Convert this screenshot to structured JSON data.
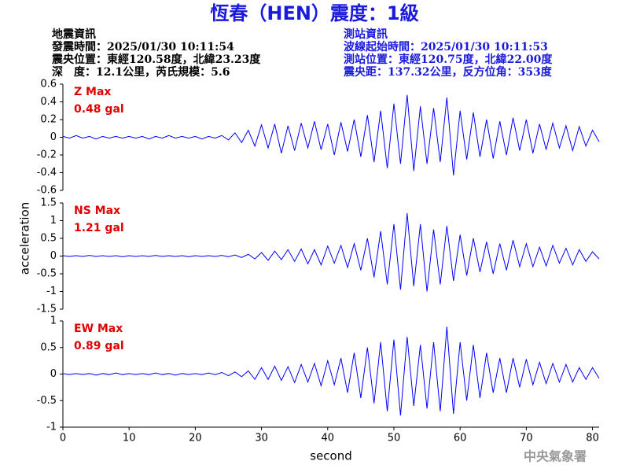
{
  "header": {
    "title": "恆春（HEN）震度：1級",
    "event": [
      "地震資訊",
      "發震時間：2025/01/30 10:11:54",
      "震央位置：東經120.58度，北緯23.23度",
      "深　度：12.1公里，芮氏規模：5.6"
    ],
    "station": [
      "測站資訊",
      "波線起始時間：2025/01/30 10:11:53",
      "測站位置：東經120.75度，北緯22.00度",
      "震央距：137.32公里，反方位角：353度"
    ]
  },
  "ylabel": "acceleration",
  "footer": {
    "agency": "中央氣象署"
  },
  "chart_data": [
    {
      "type": "line",
      "color": "#0000ff",
      "annotations": [
        "Z Max",
        "0.48 gal"
      ],
      "xlim": [
        0,
        81
      ],
      "ylim": [
        -0.6,
        0.6
      ],
      "yticks": [
        -0.6,
        -0.4,
        -0.2,
        0,
        0.2,
        0.4,
        0.6
      ],
      "x": [
        0,
        1,
        2,
        3,
        4,
        5,
        6,
        7,
        8,
        9,
        10,
        11,
        12,
        13,
        14,
        15,
        16,
        17,
        18,
        19,
        20,
        21,
        22,
        23,
        24,
        25,
        26,
        27,
        28,
        29,
        30,
        31,
        32,
        33,
        34,
        35,
        36,
        37,
        38,
        39,
        40,
        41,
        42,
        43,
        44,
        45,
        46,
        47,
        48,
        49,
        50,
        51,
        52,
        53,
        54,
        55,
        56,
        57,
        58,
        59,
        60,
        61,
        62,
        63,
        64,
        65,
        66,
        67,
        68,
        69,
        70,
        71,
        72,
        73,
        74,
        75,
        76,
        77,
        78,
        79,
        80,
        81
      ],
      "values": [
        0.01,
        -0.01,
        0.02,
        -0.01,
        0.01,
        -0.02,
        0.01,
        -0.01,
        0.01,
        -0.01,
        0.01,
        -0.01,
        0.01,
        -0.02,
        0.01,
        -0.01,
        0.02,
        -0.01,
        0.01,
        -0.01,
        0.01,
        -0.02,
        0.01,
        -0.01,
        0.02,
        -0.03,
        0.05,
        -0.06,
        0.08,
        -0.1,
        0.14,
        -0.12,
        0.15,
        -0.18,
        0.13,
        -0.15,
        0.16,
        -0.12,
        0.18,
        -0.14,
        0.15,
        -0.2,
        0.17,
        -0.16,
        0.2,
        -0.22,
        0.25,
        -0.28,
        0.3,
        -0.35,
        0.38,
        -0.3,
        0.48,
        -0.38,
        0.35,
        -0.3,
        0.33,
        -0.28,
        0.45,
        -0.43,
        0.3,
        -0.25,
        0.28,
        -0.22,
        0.2,
        -0.24,
        0.18,
        -0.2,
        0.22,
        -0.15,
        0.2,
        -0.18,
        0.15,
        -0.14,
        0.16,
        -0.12,
        0.13,
        -0.15,
        0.12,
        -0.1,
        0.08,
        -0.05
      ]
    },
    {
      "type": "line",
      "color": "#0000ff",
      "annotations": [
        "NS Max",
        "1.21 gal"
      ],
      "xlim": [
        0,
        81
      ],
      "ylim": [
        -1.5,
        1.5
      ],
      "yticks": [
        -1.5,
        -1,
        -0.5,
        0,
        0.5,
        1,
        1.5
      ],
      "x": [
        0,
        1,
        2,
        3,
        4,
        5,
        6,
        7,
        8,
        9,
        10,
        11,
        12,
        13,
        14,
        15,
        16,
        17,
        18,
        19,
        20,
        21,
        22,
        23,
        24,
        25,
        26,
        27,
        28,
        29,
        30,
        31,
        32,
        33,
        34,
        35,
        36,
        37,
        38,
        39,
        40,
        41,
        42,
        43,
        44,
        45,
        46,
        47,
        48,
        49,
        50,
        51,
        52,
        53,
        54,
        55,
        56,
        57,
        58,
        59,
        60,
        61,
        62,
        63,
        64,
        65,
        66,
        67,
        68,
        69,
        70,
        71,
        72,
        73,
        74,
        75,
        76,
        77,
        78,
        79,
        80,
        81
      ],
      "values": [
        0.01,
        -0.01,
        0.01,
        -0.01,
        0.02,
        -0.01,
        0.01,
        -0.01,
        0.01,
        -0.02,
        0.01,
        -0.01,
        0.01,
        -0.01,
        0.02,
        -0.01,
        0.01,
        -0.01,
        0.01,
        -0.02,
        0.01,
        -0.01,
        0.01,
        -0.01,
        0.02,
        -0.02,
        0.03,
        -0.04,
        0.05,
        -0.08,
        0.1,
        -0.12,
        0.14,
        -0.1,
        0.18,
        -0.15,
        0.2,
        -0.22,
        0.18,
        -0.25,
        0.28,
        -0.2,
        0.3,
        -0.32,
        0.35,
        -0.4,
        0.5,
        -0.6,
        0.7,
        -0.8,
        0.9,
        -0.95,
        1.21,
        -0.85,
        0.9,
        -1.0,
        0.75,
        -0.8,
        0.85,
        -0.7,
        0.6,
        -0.55,
        0.5,
        -0.45,
        0.4,
        -0.5,
        0.35,
        -0.4,
        0.45,
        -0.3,
        0.35,
        -0.3,
        0.25,
        -0.28,
        0.3,
        -0.2,
        0.22,
        -0.25,
        0.18,
        -0.15,
        0.12,
        -0.08
      ]
    },
    {
      "type": "line",
      "color": "#0000ff",
      "annotations": [
        "EW Max",
        "0.89 gal"
      ],
      "xlim": [
        0,
        81
      ],
      "ylim": [
        -1,
        1
      ],
      "yticks": [
        -1,
        -0.5,
        0,
        0.5,
        1
      ],
      "xticks": [
        0,
        10,
        20,
        30,
        40,
        50,
        60,
        70,
        80
      ],
      "xlabel": "second",
      "x": [
        0,
        1,
        2,
        3,
        4,
        5,
        6,
        7,
        8,
        9,
        10,
        11,
        12,
        13,
        14,
        15,
        16,
        17,
        18,
        19,
        20,
        21,
        22,
        23,
        24,
        25,
        26,
        27,
        28,
        29,
        30,
        31,
        32,
        33,
        34,
        35,
        36,
        37,
        38,
        39,
        40,
        41,
        42,
        43,
        44,
        45,
        46,
        47,
        48,
        49,
        50,
        51,
        52,
        53,
        54,
        55,
        56,
        57,
        58,
        59,
        60,
        61,
        62,
        63,
        64,
        65,
        66,
        67,
        68,
        69,
        70,
        71,
        72,
        73,
        74,
        75,
        76,
        77,
        78,
        79,
        80,
        81
      ],
      "values": [
        0.01,
        -0.01,
        0.01,
        -0.01,
        0.01,
        -0.02,
        0.01,
        -0.01,
        0.02,
        -0.01,
        0.01,
        -0.01,
        0.01,
        -0.01,
        0.02,
        -0.01,
        0.01,
        -0.02,
        0.01,
        -0.01,
        0.01,
        -0.01,
        0.02,
        -0.01,
        0.03,
        -0.03,
        0.04,
        -0.05,
        0.06,
        -0.1,
        0.12,
        -0.1,
        0.15,
        -0.12,
        0.14,
        -0.16,
        0.18,
        -0.15,
        0.2,
        -0.22,
        0.25,
        -0.2,
        0.3,
        -0.35,
        0.4,
        -0.45,
        0.5,
        -0.55,
        0.6,
        -0.7,
        0.65,
        -0.78,
        0.7,
        -0.6,
        0.55,
        -0.65,
        0.6,
        -0.7,
        0.89,
        -0.75,
        0.6,
        -0.5,
        0.55,
        -0.45,
        0.4,
        -0.35,
        0.3,
        -0.35,
        0.3,
        -0.25,
        0.28,
        -0.2,
        0.22,
        -0.18,
        0.2,
        -0.15,
        0.18,
        -0.15,
        0.12,
        -0.1,
        0.12,
        -0.08
      ]
    }
  ]
}
